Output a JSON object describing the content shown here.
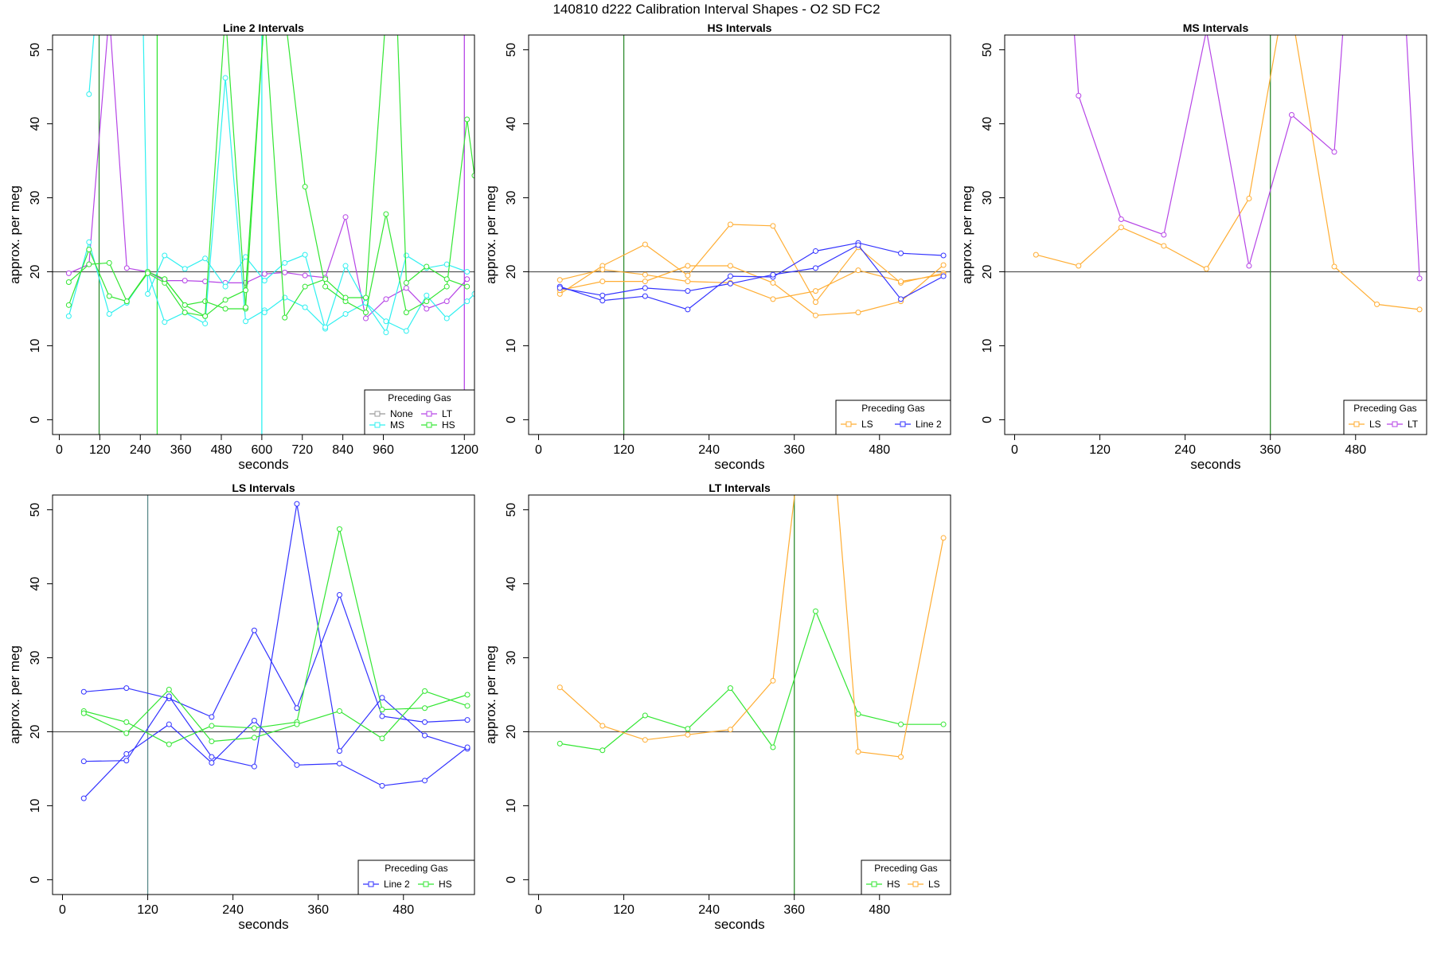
{
  "title": "140810    d222    Calibration Interval Shapes - O2 SD FC2",
  "colors": {
    "None": "#999999",
    "LT": "#b645e6",
    "MS": "#2ff0f0",
    "HS": "#33e633",
    "LS": "#ffad33",
    "Line 2": "#3333ff",
    "refline": "#555555",
    "vline_green": "#2e8b2e"
  },
  "chart_data": [
    {
      "type": "line",
      "title": "Line 2 Intervals",
      "xlabel": "seconds",
      "ylabel": "approx. per meg",
      "xlim": [
        -20,
        1230
      ],
      "ylim": [
        -2,
        52
      ],
      "xticks": [
        0,
        120,
        240,
        360,
        480,
        600,
        720,
        840,
        960,
        1200
      ],
      "yticks": [
        0,
        10,
        20,
        30,
        40,
        50
      ],
      "hline": 20,
      "vlines": [
        {
          "x": 118,
          "color": "#2e8b2e"
        },
        {
          "x": 290,
          "color": "#33e633"
        },
        {
          "x": 600,
          "color": "#2ff0f0"
        },
        {
          "x": 1200,
          "color": "#b645e6"
        }
      ],
      "legend": {
        "title": "Preceding Gas",
        "entries": [
          "None",
          "LT",
          "MS",
          "HS"
        ],
        "columns": 2
      },
      "series": [
        {
          "name": "LT",
          "x": [
            28,
            88,
            148,
            200,
            262,
            312
          ],
          "y": [
            19.8,
            21.0,
            55,
            20.5,
            20.0,
            18.8
          ]
        },
        {
          "name": "LT",
          "x": [
            312,
            372,
            432,
            492,
            552,
            608,
            668,
            728,
            788,
            848,
            908,
            968,
            1028,
            1088,
            1148,
            1208
          ],
          "y": [
            18.8,
            18.8,
            18.7,
            18.5,
            18.5,
            19.7,
            19.9,
            19.5,
            19.2,
            27.4,
            13.7,
            16.3,
            17.8,
            15.0,
            16.0,
            19.0
          ]
        },
        {
          "name": "MS",
          "x": [
            28,
            88,
            148,
            200,
            262,
            312,
            372,
            432,
            492,
            552,
            608
          ],
          "y": [
            14.0,
            24.0,
            14.3,
            15.8,
            20.0,
            13.2,
            14.5,
            13.0,
            46.2,
            13.3,
            14.8
          ]
        },
        {
          "name": "MS",
          "x": [
            88,
            108
          ],
          "y": [
            44.0,
            55
          ]
        },
        {
          "name": "MS",
          "x": [
            248,
            262,
            312,
            372,
            432,
            492,
            552,
            608,
            668,
            728,
            788,
            848,
            908,
            968,
            1028,
            1088,
            1148,
            1208
          ],
          "y": [
            55,
            17.0,
            22.2,
            20.4,
            21.8,
            18.0,
            22.0,
            18.8,
            21.2,
            22.3,
            12.3,
            20.8,
            15.8,
            11.8,
            22.2,
            20.5,
            21.0,
            20.0
          ]
        },
        {
          "name": "MS",
          "x": [
            608,
            668,
            728,
            788,
            848,
            908,
            968,
            1028,
            1088,
            1148,
            1208,
            1230
          ],
          "y": [
            14.5,
            16.5,
            15.2,
            12.5,
            14.3,
            15.8,
            13.3,
            12.0,
            16.8,
            13.7,
            16.0,
            17.0
          ]
        },
        {
          "name": "HS",
          "x": [
            28,
            88,
            148,
            200,
            262,
            312,
            372,
            432,
            492,
            552
          ],
          "y": [
            15.5,
            23.0,
            16.7,
            16.0,
            20.0,
            19.0,
            15.5,
            16.0,
            15.0,
            15.0
          ]
        },
        {
          "name": "HS",
          "x": [
            28,
            88,
            148,
            200,
            262,
            312,
            372,
            432,
            492,
            552,
            608,
            668,
            728,
            788,
            848,
            908,
            968,
            1028,
            1088,
            1148,
            1208,
            1230
          ],
          "y": [
            18.6,
            21.0,
            21.2,
            16.0,
            19.8,
            18.5,
            14.5,
            14.0,
            55,
            15.2,
            55,
            55,
            31.5,
            18.0,
            16.0,
            14.5,
            27.8,
            14.5,
            16.0,
            18.0,
            40.6,
            33
          ]
        },
        {
          "name": "HS",
          "x": [
            312,
            372,
            432,
            492,
            552,
            608,
            668,
            728,
            788,
            848,
            908,
            968,
            1000,
            1028,
            1088,
            1148,
            1208
          ],
          "y": [
            19.0,
            15.5,
            14.0,
            16.2,
            17.5,
            55,
            13.8,
            18.0,
            19.0,
            16.5,
            16.5,
            55,
            55,
            18.5,
            20.7,
            19.0,
            18.0
          ]
        }
      ]
    },
    {
      "type": "line",
      "title": "HS Intervals",
      "xlabel": "seconds",
      "ylabel": "approx. per meg",
      "xlim": [
        -14,
        580
      ],
      "ylim": [
        -2,
        52
      ],
      "xticks": [
        0,
        120,
        240,
        360,
        480
      ],
      "yticks": [
        0,
        10,
        20,
        30,
        40,
        50
      ],
      "hline": 20,
      "vlines": [
        {
          "x": 120,
          "color": "#2e8b2e"
        }
      ],
      "legend": {
        "title": "Preceding Gas",
        "entries": [
          "LS",
          "Line 2"
        ],
        "columns": 2
      },
      "series": [
        {
          "name": "LS",
          "x": [
            30,
            90,
            150,
            210,
            270,
            330,
            390,
            450,
            510,
            570
          ],
          "y": [
            17.0,
            20.8,
            23.7,
            19.5,
            26.4,
            26.2,
            15.9,
            23.3,
            18.5,
            19.8
          ]
        },
        {
          "name": "LS",
          "x": [
            30,
            90,
            150,
            210,
            270,
            330,
            390,
            450,
            510,
            570
          ],
          "y": [
            17.5,
            18.7,
            18.7,
            20.8,
            20.8,
            18.5,
            14.1,
            14.5,
            16.0,
            20.9
          ]
        },
        {
          "name": "LS",
          "x": [
            30,
            90,
            150,
            210,
            270,
            330,
            390,
            450,
            510,
            570
          ],
          "y": [
            18.9,
            20.3,
            19.6,
            18.7,
            18.5,
            16.3,
            17.4,
            20.2,
            18.7,
            19.6
          ]
        },
        {
          "name": "Line 2",
          "x": [
            30,
            90,
            150,
            210,
            270,
            330,
            390,
            450,
            510,
            570
          ],
          "y": [
            18.0,
            16.1,
            16.7,
            14.9,
            19.4,
            19.3,
            22.8,
            23.9,
            22.5,
            22.2
          ]
        },
        {
          "name": "Line 2",
          "x": [
            30,
            90,
            150,
            210,
            270,
            330,
            390,
            450,
            510,
            570
          ],
          "y": [
            17.8,
            16.8,
            17.8,
            17.4,
            18.4,
            19.6,
            20.5,
            23.6,
            16.3,
            19.4
          ]
        }
      ]
    },
    {
      "type": "line",
      "title": "MS Intervals",
      "xlabel": "seconds",
      "ylabel": "approx. per meg",
      "xlim": [
        -14,
        580
      ],
      "ylim": [
        -2,
        52
      ],
      "xticks": [
        0,
        120,
        240,
        360,
        480
      ],
      "yticks": [
        0,
        10,
        20,
        30,
        40,
        50
      ],
      "hline": 20,
      "vlines": [
        {
          "x": 360,
          "color": "#2e8b2e"
        }
      ],
      "legend": {
        "title": "Preceding Gas",
        "entries": [
          "LS",
          "LT"
        ],
        "columns": 2
      },
      "series": [
        {
          "name": "LS",
          "x": [
            30,
            90,
            150,
            210,
            270,
            330,
            376,
            390,
            450,
            510,
            570
          ],
          "y": [
            22.3,
            20.8,
            26.0,
            23.5,
            20.4,
            29.9,
            55,
            55,
            20.7,
            15.6,
            14.9
          ]
        },
        {
          "name": "LT",
          "x": [
            82,
            90,
            150,
            210,
            270,
            330,
            390,
            450,
            464,
            550,
            570
          ],
          "y": [
            55,
            43.8,
            27.1,
            25.0,
            52.6,
            20.8,
            41.2,
            36.2,
            55,
            55,
            19.1
          ]
        }
      ]
    },
    {
      "type": "line",
      "title": "LS Intervals",
      "xlabel": "seconds",
      "ylabel": "approx. per meg",
      "xlim": [
        -14,
        580
      ],
      "ylim": [
        -2,
        52
      ],
      "xticks": [
        0,
        120,
        240,
        360,
        480
      ],
      "yticks": [
        0,
        10,
        20,
        30,
        40,
        50
      ],
      "hline": 20,
      "vlines": [
        {
          "x": 120,
          "color": "#5a8a8a"
        }
      ],
      "legend": {
        "title": "Preceding Gas",
        "entries": [
          "Line 2",
          "HS"
        ],
        "columns": 2
      },
      "series": [
        {
          "name": "Line 2",
          "x": [
            30,
            90,
            150,
            210,
            270,
            330,
            390,
            450,
            510,
            570
          ],
          "y": [
            25.4,
            25.9,
            24.5,
            22.0,
            33.7,
            23.2,
            38.5,
            22.1,
            21.3,
            21.6
          ]
        },
        {
          "name": "Line 2",
          "x": [
            30,
            90,
            150,
            210,
            270,
            330,
            390,
            450,
            510,
            570
          ],
          "y": [
            16.0,
            16.1,
            24.8,
            16.6,
            15.3,
            50.8,
            17.4,
            24.6,
            19.5,
            17.7
          ]
        },
        {
          "name": "Line 2",
          "x": [
            30,
            90,
            150,
            210,
            270,
            330,
            390,
            450,
            510,
            570
          ],
          "y": [
            11.0,
            17.0,
            21.0,
            15.8,
            21.5,
            15.5,
            15.7,
            12.7,
            13.4,
            17.9
          ]
        },
        {
          "name": "HS",
          "x": [
            30,
            90,
            150,
            210,
            270,
            330,
            390,
            450,
            510,
            570
          ],
          "y": [
            22.8,
            21.3,
            18.3,
            20.8,
            20.5,
            21.3,
            47.4,
            23.0,
            23.2,
            25.0
          ]
        },
        {
          "name": "HS",
          "x": [
            30,
            90,
            150,
            210,
            270,
            330,
            390,
            450,
            510,
            570
          ],
          "y": [
            22.5,
            19.8,
            25.7,
            18.7,
            19.2,
            21.0,
            22.8,
            19.1,
            25.5,
            23.5
          ]
        }
      ]
    },
    {
      "type": "line",
      "title": "LT Intervals",
      "xlabel": "seconds",
      "ylabel": "approx. per meg",
      "xlim": [
        -14,
        580
      ],
      "ylim": [
        -2,
        52
      ],
      "xticks": [
        0,
        120,
        240,
        360,
        480
      ],
      "yticks": [
        0,
        10,
        20,
        30,
        40,
        50
      ],
      "hline": 20,
      "vlines": [
        {
          "x": 360,
          "color": "#2e8b2e"
        }
      ],
      "legend": {
        "title": "Preceding Gas",
        "entries": [
          "HS",
          "LS"
        ],
        "columns": 2
      },
      "series": [
        {
          "name": "HS",
          "x": [
            30,
            90,
            150,
            210,
            270,
            330,
            390,
            450,
            510,
            570
          ],
          "y": [
            18.4,
            17.5,
            22.2,
            20.4,
            25.9,
            17.9,
            36.3,
            22.4,
            21.0,
            21.0
          ]
        },
        {
          "name": "LS",
          "x": [
            30,
            90,
            150,
            210,
            270,
            330,
            364,
            418,
            450,
            510,
            570
          ],
          "y": [
            26.0,
            20.8,
            18.9,
            19.6,
            20.3,
            26.9,
            55,
            55,
            17.3,
            16.6,
            46.2
          ]
        }
      ]
    }
  ]
}
